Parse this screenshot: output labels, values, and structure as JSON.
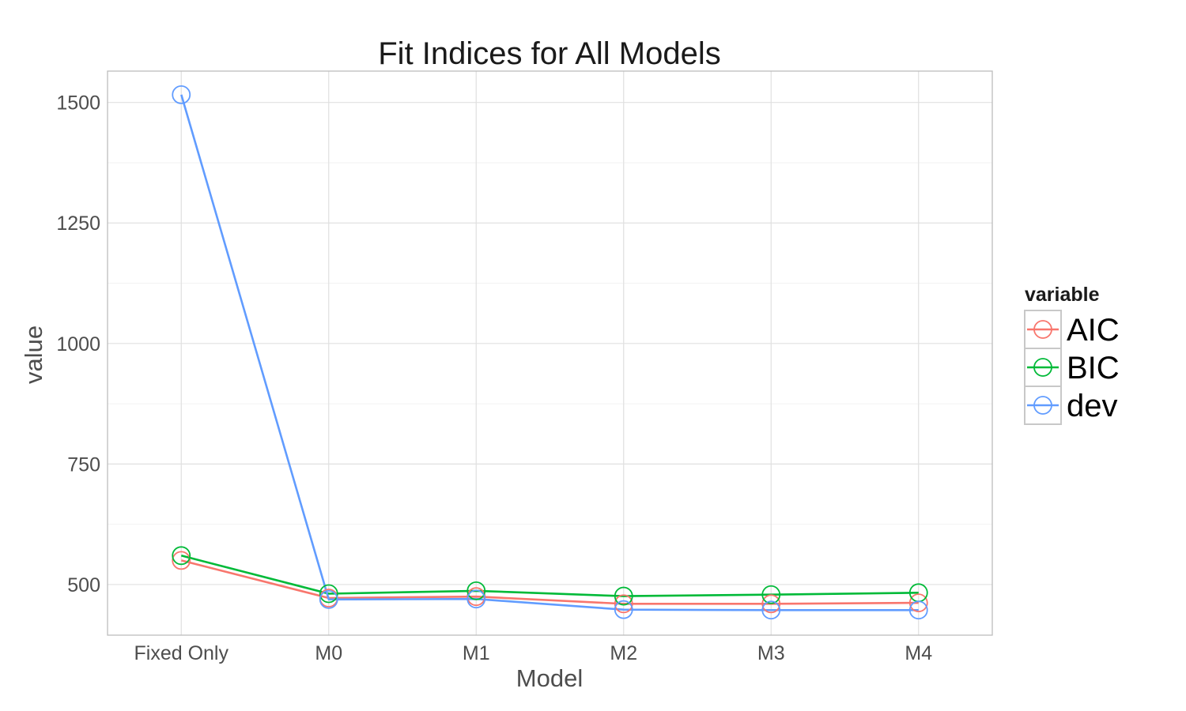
{
  "chart_data": {
    "type": "line",
    "title": "Fit Indices for All Models",
    "xlabel": "Model",
    "ylabel": "value",
    "categories": [
      "Fixed Only",
      "M0",
      "M1",
      "M2",
      "M3",
      "M4"
    ],
    "ylim": [
      395,
      1565
    ],
    "yticks": [
      500,
      750,
      1000,
      1250,
      1500
    ],
    "ytick_labels": [
      "500",
      "750",
      "1000",
      "1250",
      "1500"
    ],
    "grid": true,
    "legend": {
      "title": "variable",
      "placement": "right"
    },
    "series": [
      {
        "name": "AIC",
        "color": "#F8766D",
        "values": [
          550,
          472,
          475,
          460,
          460,
          462
        ]
      },
      {
        "name": "BIC",
        "color": "#00BA38",
        "values": [
          560,
          481,
          487,
          476,
          479,
          483
        ]
      },
      {
        "name": "dev",
        "color": "#619CFF",
        "values": [
          1516,
          469,
          470,
          448,
          447,
          447
        ]
      }
    ]
  }
}
